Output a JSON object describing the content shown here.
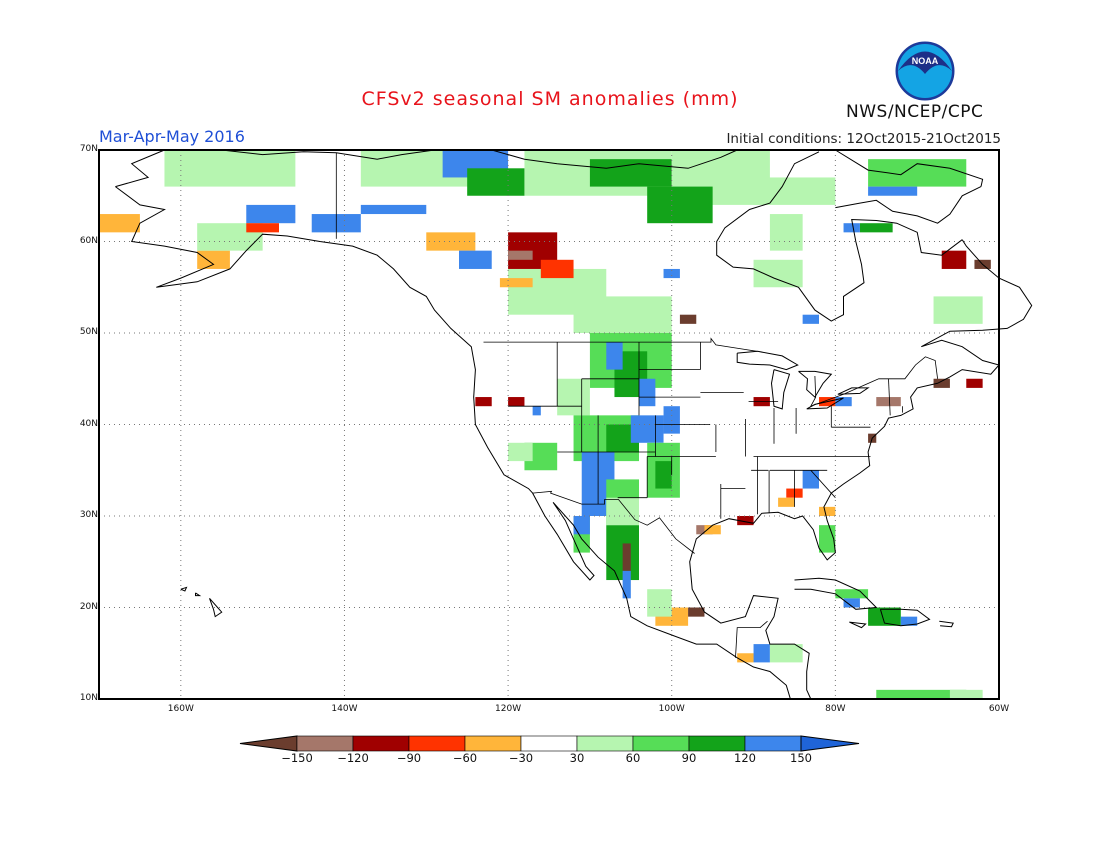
{
  "title": "CFSv2 seasonal SM anomalies (mm)",
  "period": "Mar-Apr-May 2016",
  "initial_conditions": "Initial conditions: 12Oct2015-21Oct2015",
  "organization": "NWS/NCEP/CPC",
  "logo_text": "NOAA",
  "lat_ticks": [
    {
      "label": "70N",
      "lat": 70
    },
    {
      "label": "60N",
      "lat": 60
    },
    {
      "label": "50N",
      "lat": 50
    },
    {
      "label": "40N",
      "lat": 40
    },
    {
      "label": "30N",
      "lat": 30
    },
    {
      "label": "20N",
      "lat": 20
    },
    {
      "label": "10N",
      "lat": 10
    }
  ],
  "lon_ticks": [
    {
      "label": "160W",
      "lon": -160
    },
    {
      "label": "140W",
      "lon": -140
    },
    {
      "label": "120W",
      "lon": -120
    },
    {
      "label": "100W",
      "lon": -100
    },
    {
      "label": "80W",
      "lon": -80
    },
    {
      "label": "60W",
      "lon": -60
    }
  ],
  "colorbar": {
    "colors": [
      "#6b3d2e",
      "#a5776a",
      "#a00000",
      "#ff3300",
      "#ffb53a",
      "#ffffff",
      "#b6f5b0",
      "#56dd57",
      "#13a31a",
      "#3d86ec",
      "#1f64d8"
    ],
    "labels": [
      "-150",
      "-120",
      "-90",
      "-60",
      "-30",
      "30",
      "60",
      "90",
      "120",
      "150"
    ]
  },
  "anomaly_classes": {
    "db": "#6b3d2e",
    "lb": "#a5776a",
    "dr": "#a00000",
    "r": "#ff3300",
    "o": "#ffb53a",
    "lg": "#b6f5b0",
    "g": "#56dd57",
    "dg": "#13a31a",
    "b": "#3d86ec"
  },
  "anomaly_patches": [
    {
      "c": "lg",
      "x": [
        -162,
        -146
      ],
      "y": [
        66,
        70
      ]
    },
    {
      "c": "lg",
      "x": [
        -138,
        -124
      ],
      "y": [
        66,
        70
      ]
    },
    {
      "c": "b",
      "x": [
        -128,
        -120
      ],
      "y": [
        67,
        70
      ]
    },
    {
      "c": "dg",
      "x": [
        -125,
        -118
      ],
      "y": [
        65,
        68
      ]
    },
    {
      "c": "lg",
      "x": [
        -118,
        -100
      ],
      "y": [
        65,
        70
      ]
    },
    {
      "c": "dg",
      "x": [
        -110,
        -100
      ],
      "y": [
        66,
        69
      ]
    },
    {
      "c": "lg",
      "x": [
        -100,
        -88
      ],
      "y": [
        64,
        70
      ]
    },
    {
      "c": "dg",
      "x": [
        -103,
        -95
      ],
      "y": [
        62,
        66
      ]
    },
    {
      "c": "lg",
      "x": [
        -90,
        -80
      ],
      "y": [
        64,
        67
      ]
    },
    {
      "c": "g",
      "x": [
        -76,
        -64
      ],
      "y": [
        66,
        69
      ]
    },
    {
      "c": "b",
      "x": [
        -76,
        -70
      ],
      "y": [
        65,
        66
      ]
    },
    {
      "c": "lg",
      "x": [
        -88,
        -84
      ],
      "y": [
        59,
        63
      ]
    },
    {
      "c": "dg",
      "x": [
        -77,
        -73
      ],
      "y": [
        61,
        62
      ]
    },
    {
      "c": "b",
      "x": [
        -79,
        -77
      ],
      "y": [
        61,
        62
      ]
    },
    {
      "c": "o",
      "x": [
        -170,
        -165
      ],
      "y": [
        61,
        63
      ]
    },
    {
      "c": "o",
      "x": [
        -158,
        -154
      ],
      "y": [
        57,
        59
      ]
    },
    {
      "c": "lg",
      "x": [
        -158,
        -150
      ],
      "y": [
        59,
        62
      ]
    },
    {
      "c": "b",
      "x": [
        -152,
        -146
      ],
      "y": [
        62,
        64
      ]
    },
    {
      "c": "r",
      "x": [
        -152,
        -148
      ],
      "y": [
        61,
        62
      ]
    },
    {
      "c": "b",
      "x": [
        -144,
        -138
      ],
      "y": [
        61,
        63
      ]
    },
    {
      "c": "b",
      "x": [
        -138,
        -130
      ],
      "y": [
        63,
        64
      ]
    },
    {
      "c": "o",
      "x": [
        -130,
        -124
      ],
      "y": [
        59,
        61
      ]
    },
    {
      "c": "b",
      "x": [
        -126,
        -122
      ],
      "y": [
        57,
        59
      ]
    },
    {
      "c": "lg",
      "x": [
        -120,
        -108
      ],
      "y": [
        52,
        57
      ]
    },
    {
      "c": "dr",
      "x": [
        -120,
        -114
      ],
      "y": [
        57,
        61
      ]
    },
    {
      "c": "r",
      "x": [
        -116,
        -112
      ],
      "y": [
        56,
        58
      ]
    },
    {
      "c": "lb",
      "x": [
        -120,
        -117
      ],
      "y": [
        58,
        59
      ]
    },
    {
      "c": "o",
      "x": [
        -121,
        -117
      ],
      "y": [
        55,
        56
      ]
    },
    {
      "c": "lg",
      "x": [
        -112,
        -100
      ],
      "y": [
        50,
        54
      ]
    },
    {
      "c": "b",
      "x": [
        -101,
        -99
      ],
      "y": [
        56,
        57
      ]
    },
    {
      "c": "db",
      "x": [
        -99,
        -97
      ],
      "y": [
        51,
        52
      ]
    },
    {
      "c": "lg",
      "x": [
        -90,
        -84
      ],
      "y": [
        55,
        58
      ]
    },
    {
      "c": "b",
      "x": [
        -84,
        -82
      ],
      "y": [
        51,
        52
      ]
    },
    {
      "c": "lg",
      "x": [
        -68,
        -62
      ],
      "y": [
        51,
        54
      ]
    },
    {
      "c": "dr",
      "x": [
        -67,
        -64
      ],
      "y": [
        57,
        59
      ]
    },
    {
      "c": "db",
      "x": [
        -63,
        -61
      ],
      "y": [
        57,
        58
      ]
    },
    {
      "c": "g",
      "x": [
        -110,
        -100
      ],
      "y": [
        44,
        50
      ]
    },
    {
      "c": "dg",
      "x": [
        -107,
        -103
      ],
      "y": [
        43,
        48
      ]
    },
    {
      "c": "b",
      "x": [
        -104,
        -102
      ],
      "y": [
        42,
        45
      ]
    },
    {
      "c": "b",
      "x": [
        -108,
        -106
      ],
      "y": [
        46,
        49
      ]
    },
    {
      "c": "lg",
      "x": [
        -114,
        -110
      ],
      "y": [
        41,
        45
      ]
    },
    {
      "c": "g",
      "x": [
        -112,
        -104
      ],
      "y": [
        36,
        41
      ]
    },
    {
      "c": "dg",
      "x": [
        -108,
        -104
      ],
      "y": [
        37,
        40
      ]
    },
    {
      "c": "b",
      "x": [
        -105,
        -101
      ],
      "y": [
        38,
        41
      ]
    },
    {
      "c": "b",
      "x": [
        -101,
        -99
      ],
      "y": [
        39,
        42
      ]
    },
    {
      "c": "g",
      "x": [
        -103,
        -99
      ],
      "y": [
        32,
        38
      ]
    },
    {
      "c": "dg",
      "x": [
        -102,
        -100
      ],
      "y": [
        33,
        36
      ]
    },
    {
      "c": "b",
      "x": [
        -111,
        -107
      ],
      "y": [
        30,
        37
      ]
    },
    {
      "c": "g",
      "x": [
        -108,
        -104
      ],
      "y": [
        29,
        34
      ]
    },
    {
      "c": "g",
      "x": [
        -118,
        -114
      ],
      "y": [
        35,
        38
      ]
    },
    {
      "c": "lg",
      "x": [
        -120,
        -117
      ],
      "y": [
        36,
        38
      ]
    },
    {
      "c": "g",
      "x": [
        -112,
        -110
      ],
      "y": [
        26,
        30
      ]
    },
    {
      "c": "b",
      "x": [
        -112,
        -110
      ],
      "y": [
        28,
        30
      ]
    },
    {
      "c": "dg",
      "x": [
        -108,
        -104
      ],
      "y": [
        23,
        29
      ]
    },
    {
      "c": "db",
      "x": [
        -106,
        -105
      ],
      "y": [
        24,
        27
      ]
    },
    {
      "c": "b",
      "x": [
        -106,
        -105
      ],
      "y": [
        21,
        24
      ]
    },
    {
      "c": "lg",
      "x": [
        -108,
        -104
      ],
      "y": [
        29,
        32
      ]
    },
    {
      "c": "dr",
      "x": [
        -124,
        -122
      ],
      "y": [
        42,
        43
      ]
    },
    {
      "c": "dr",
      "x": [
        -120,
        -118
      ],
      "y": [
        42,
        43
      ]
    },
    {
      "c": "b",
      "x": [
        -117,
        -116
      ],
      "y": [
        41,
        42
      ]
    },
    {
      "c": "lb",
      "x": [
        -97,
        -95
      ],
      "y": [
        28,
        29
      ]
    },
    {
      "c": "o",
      "x": [
        -96,
        -94
      ],
      "y": [
        28,
        29
      ]
    },
    {
      "c": "dr",
      "x": [
        -92,
        -90
      ],
      "y": [
        29,
        30
      ]
    },
    {
      "c": "b",
      "x": [
        -84,
        -82
      ],
      "y": [
        33,
        35
      ]
    },
    {
      "c": "r",
      "x": [
        -86,
        -84
      ],
      "y": [
        32,
        33
      ]
    },
    {
      "c": "o",
      "x": [
        -87,
        -85
      ],
      "y": [
        31,
        32
      ]
    },
    {
      "c": "g",
      "x": [
        -82,
        -80
      ],
      "y": [
        26,
        29
      ]
    },
    {
      "c": "o",
      "x": [
        -82,
        -80
      ],
      "y": [
        30,
        31
      ]
    },
    {
      "c": "dr",
      "x": [
        -90,
        -88
      ],
      "y": [
        42,
        43
      ]
    },
    {
      "c": "lb",
      "x": [
        -75,
        -72
      ],
      "y": [
        42,
        43
      ]
    },
    {
      "c": "r",
      "x": [
        -82,
        -80
      ],
      "y": [
        42,
        43
      ]
    },
    {
      "c": "b",
      "x": [
        -80,
        -78
      ],
      "y": [
        42,
        43
      ]
    },
    {
      "c": "dr",
      "x": [
        -64,
        -62
      ],
      "y": [
        44,
        45
      ]
    },
    {
      "c": "db",
      "x": [
        -68,
        -66
      ],
      "y": [
        44,
        45
      ]
    },
    {
      "c": "db",
      "x": [
        -76,
        -75
      ],
      "y": [
        38,
        39
      ]
    },
    {
      "c": "o",
      "x": [
        -102,
        -98
      ],
      "y": [
        18,
        20
      ]
    },
    {
      "c": "lg",
      "x": [
        -103,
        -100
      ],
      "y": [
        19,
        22
      ]
    },
    {
      "c": "db",
      "x": [
        -98,
        -96
      ],
      "y": [
        19,
        20
      ]
    },
    {
      "c": "b",
      "x": [
        -90,
        -88
      ],
      "y": [
        14,
        16
      ]
    },
    {
      "c": "o",
      "x": [
        -92,
        -90
      ],
      "y": [
        14,
        15
      ]
    },
    {
      "c": "lg",
      "x": [
        -88,
        -84
      ],
      "y": [
        14,
        16
      ]
    },
    {
      "c": "dg",
      "x": [
        -76,
        -72
      ],
      "y": [
        18,
        20
      ]
    },
    {
      "c": "b",
      "x": [
        -72,
        -70
      ],
      "y": [
        18,
        19
      ]
    },
    {
      "c": "g",
      "x": [
        -80,
        -76
      ],
      "y": [
        21,
        22
      ]
    },
    {
      "c": "b",
      "x": [
        -79,
        -77
      ],
      "y": [
        20,
        21
      ]
    },
    {
      "c": "g",
      "x": [
        -75,
        -64
      ],
      "y": [
        10,
        11
      ]
    },
    {
      "c": "lg",
      "x": [
        -66,
        -62
      ],
      "y": [
        10,
        11
      ]
    }
  ]
}
